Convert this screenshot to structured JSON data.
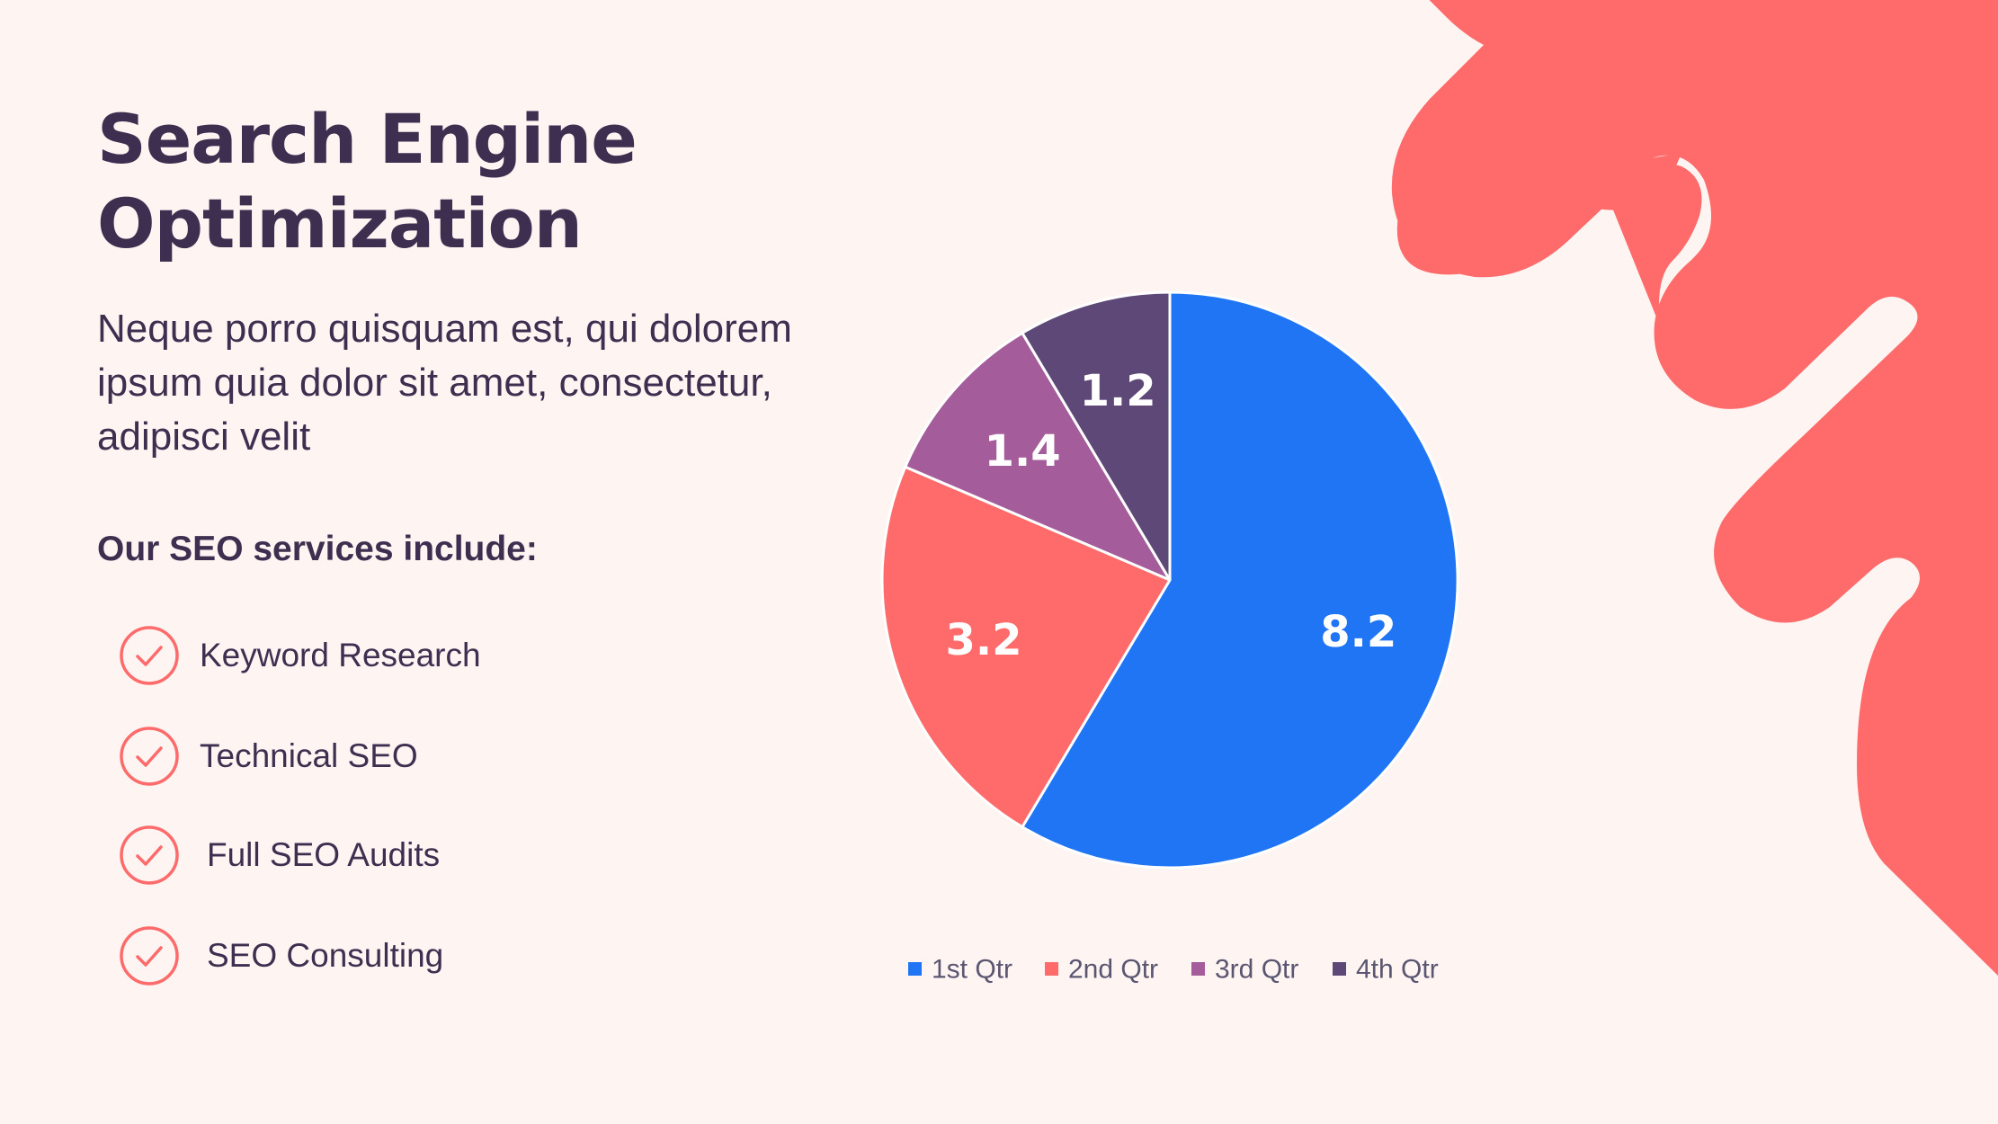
{
  "slide": {
    "title_line1": "Search Engine",
    "title_line2": "Optimization",
    "description": "Neque porro quisquam est, qui dolorem ipsum quia dolor sit amet, consectetur, adipisci velit",
    "services_heading": "Our SEO services include:",
    "services": [
      {
        "label": "Keyword Research",
        "icon": "check-circle-icon"
      },
      {
        "label": "Technical SEO",
        "icon": "check-circle-icon"
      },
      {
        "label": "Full SEO Audits",
        "icon": "check-circle-icon"
      },
      {
        "label": "SEO Consulting",
        "icon": "check-circle-icon"
      }
    ]
  },
  "colors": {
    "background": "#FEF5F3",
    "text_dark": "#3E2F50",
    "accent_coral": "#FF6B6B",
    "series": [
      "#2075F5",
      "#FF6B6B",
      "#A45C9A",
      "#5E4878"
    ]
  },
  "chart_data": {
    "type": "pie",
    "categories": [
      "1st Qtr",
      "2nd Qtr",
      "3rd Qtr",
      "4th Qtr"
    ],
    "values": [
      8.2,
      3.2,
      1.4,
      1.2
    ],
    "data_labels": [
      "8.2",
      "3.2",
      "1.4",
      "1.2"
    ],
    "legend_position": "bottom"
  }
}
